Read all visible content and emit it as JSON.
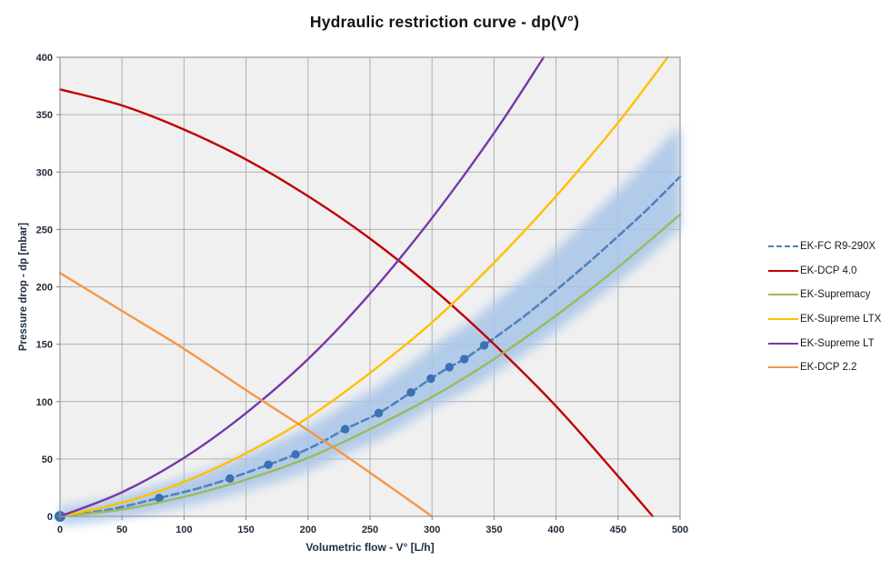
{
  "title": "Hydraulic restriction curve - dp(V°)",
  "chart_data": {
    "type": "line",
    "title": "Hydraulic restriction curve - dp(V°)",
    "xlabel": "Volumetric flow - V° [L/h]",
    "ylabel": "Pressure drop - dp [mbar]",
    "xlim": [
      0,
      500
    ],
    "ylim": [
      0,
      400
    ],
    "xticks": [
      0,
      50,
      100,
      150,
      200,
      250,
      300,
      350,
      400,
      450,
      500
    ],
    "yticks": [
      0,
      50,
      100,
      150,
      200,
      250,
      300,
      350,
      400
    ],
    "grid": true,
    "plot_bg": "#f0f0f0",
    "grid_color": "#b0b0b0",
    "border_color": "#999999",
    "glow_band_color": "#a8c5e8",
    "legend_position": "right-center",
    "series": [
      {
        "name": "EK-FC R9-290X",
        "color": "#4f81bd",
        "marker_color": "#3b6fb6",
        "line_style": "dashed",
        "has_markers": true,
        "has_glow_band": true,
        "marker_points": [
          [
            0,
            0
          ],
          [
            80,
            16
          ],
          [
            137,
            33
          ],
          [
            168,
            45
          ],
          [
            190,
            54
          ],
          [
            230,
            76
          ],
          [
            257,
            90
          ],
          [
            283,
            108
          ],
          [
            299,
            120
          ],
          [
            314,
            130
          ],
          [
            326,
            137
          ],
          [
            342,
            149
          ]
        ],
        "points": [
          [
            0,
            0
          ],
          [
            40,
            6
          ],
          [
            80,
            16
          ],
          [
            110,
            24
          ],
          [
            137,
            33
          ],
          [
            168,
            45
          ],
          [
            190,
            54
          ],
          [
            210,
            64
          ],
          [
            230,
            76
          ],
          [
            257,
            90
          ],
          [
            283,
            108
          ],
          [
            299,
            120
          ],
          [
            314,
            130
          ],
          [
            326,
            137
          ],
          [
            342,
            149
          ],
          [
            375,
            175
          ],
          [
            400,
            197
          ],
          [
            425,
            220
          ],
          [
            450,
            244
          ],
          [
            475,
            269
          ],
          [
            500,
            296
          ]
        ]
      },
      {
        "name": "EK-DCP 4.0",
        "color": "#c00000",
        "line_style": "solid",
        "has_markers": false,
        "points": [
          [
            0,
            372
          ],
          [
            50,
            358
          ],
          [
            100,
            337
          ],
          [
            150,
            311
          ],
          [
            200,
            279
          ],
          [
            250,
            242
          ],
          [
            300,
            199
          ],
          [
            350,
            150
          ],
          [
            400,
            96
          ],
          [
            450,
            35
          ],
          [
            478,
            0
          ]
        ]
      },
      {
        "name": "EK-Supremacy",
        "color": "#9bbb59",
        "line_style": "solid",
        "has_markers": false,
        "points": [
          [
            0,
            0
          ],
          [
            50,
            6
          ],
          [
            100,
            17
          ],
          [
            150,
            32
          ],
          [
            200,
            51
          ],
          [
            250,
            76
          ],
          [
            300,
            104
          ],
          [
            350,
            137
          ],
          [
            400,
            175
          ],
          [
            450,
            217
          ],
          [
            500,
            263
          ]
        ]
      },
      {
        "name": "EK-Supreme LTX",
        "color": "#ffc000",
        "line_style": "solid",
        "has_markers": false,
        "points": [
          [
            0,
            0
          ],
          [
            50,
            12
          ],
          [
            100,
            30
          ],
          [
            150,
            55
          ],
          [
            200,
            86
          ],
          [
            250,
            125
          ],
          [
            300,
            169
          ],
          [
            350,
            221
          ],
          [
            400,
            279
          ],
          [
            450,
            343
          ],
          [
            490,
            400
          ]
        ]
      },
      {
        "name": "EK-Supreme LT",
        "color": "#7339ab",
        "line_style": "solid",
        "has_markers": false,
        "points": [
          [
            0,
            0
          ],
          [
            50,
            21
          ],
          [
            100,
            51
          ],
          [
            150,
            90
          ],
          [
            200,
            137
          ],
          [
            250,
            194
          ],
          [
            300,
            260
          ],
          [
            350,
            334
          ],
          [
            390,
            400
          ]
        ]
      },
      {
        "name": "EK-DCP 2.2",
        "color": "#f79646",
        "line_style": "solid",
        "has_markers": false,
        "points": [
          [
            0,
            212
          ],
          [
            50,
            179
          ],
          [
            100,
            146
          ],
          [
            150,
            110
          ],
          [
            200,
            75
          ],
          [
            250,
            38
          ],
          [
            300,
            0
          ]
        ]
      }
    ]
  }
}
